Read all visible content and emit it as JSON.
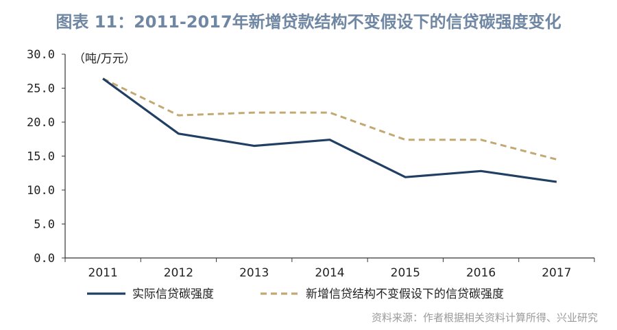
{
  "page": {
    "title": "图表 11：2011-2017年新增贷款结构不变假设下的信贷碳强度变化",
    "source": "资料来源：作者根据相关资料计算所得、兴业研究"
  },
  "chart_data": {
    "type": "line",
    "title": "图表 11：2011-2017年新增贷款结构不变假设下的信贷碳强度变化",
    "ylabel": "（吨/万元）",
    "xlabel": "",
    "categories": [
      "2011",
      "2012",
      "2013",
      "2014",
      "2015",
      "2016",
      "2017"
    ],
    "ylim": [
      0,
      30
    ],
    "yticks": [
      "0.0",
      "5.0",
      "10.0",
      "15.0",
      "20.0",
      "25.0",
      "30.0"
    ],
    "grid": false,
    "legend_position": "bottom",
    "series": [
      {
        "name": "实际信贷碳强度",
        "values": [
          26.4,
          18.3,
          16.5,
          17.4,
          11.9,
          12.8,
          11.2
        ],
        "color": "#213f63",
        "style": "solid"
      },
      {
        "name": "新增信贷结构不变假设下的信贷碳强度",
        "values": [
          26.4,
          21.0,
          21.4,
          21.4,
          17.4,
          17.4,
          14.5
        ],
        "color": "#c2a872",
        "style": "dashed"
      }
    ]
  }
}
